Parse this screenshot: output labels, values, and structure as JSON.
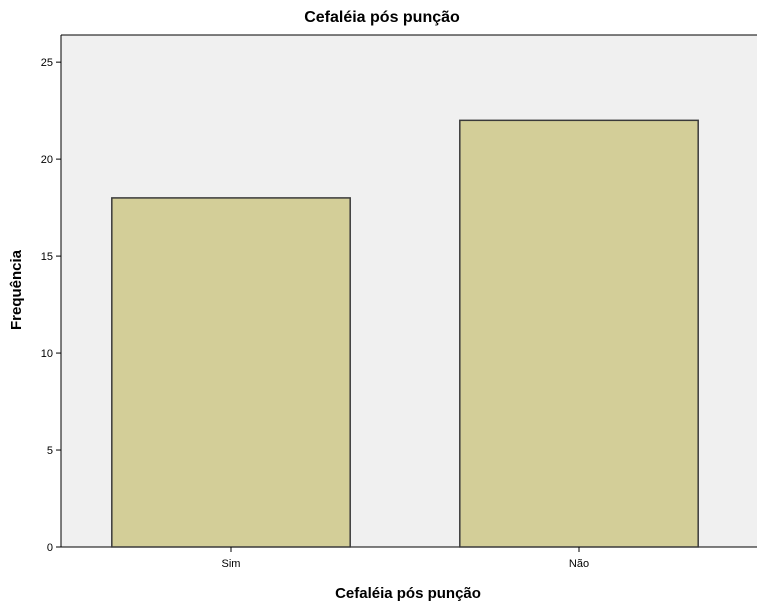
{
  "chart_data": {
    "type": "bar",
    "title": "Cefaléia pós punção",
    "xlabel": "Cefaléia pós punção",
    "ylabel": "Frequência",
    "categories": [
      "Sim",
      "Não"
    ],
    "values": [
      18,
      22
    ],
    "ylim": [
      0,
      26.4
    ],
    "yticks": [
      0,
      5,
      10,
      15,
      20,
      25
    ],
    "grid": false,
    "legend": "none",
    "colors": {
      "bar_fill": "#d3ce98",
      "bar_stroke": "#3a3a3a",
      "plot_background": "#f0f0f0",
      "axis": "#000000"
    }
  }
}
